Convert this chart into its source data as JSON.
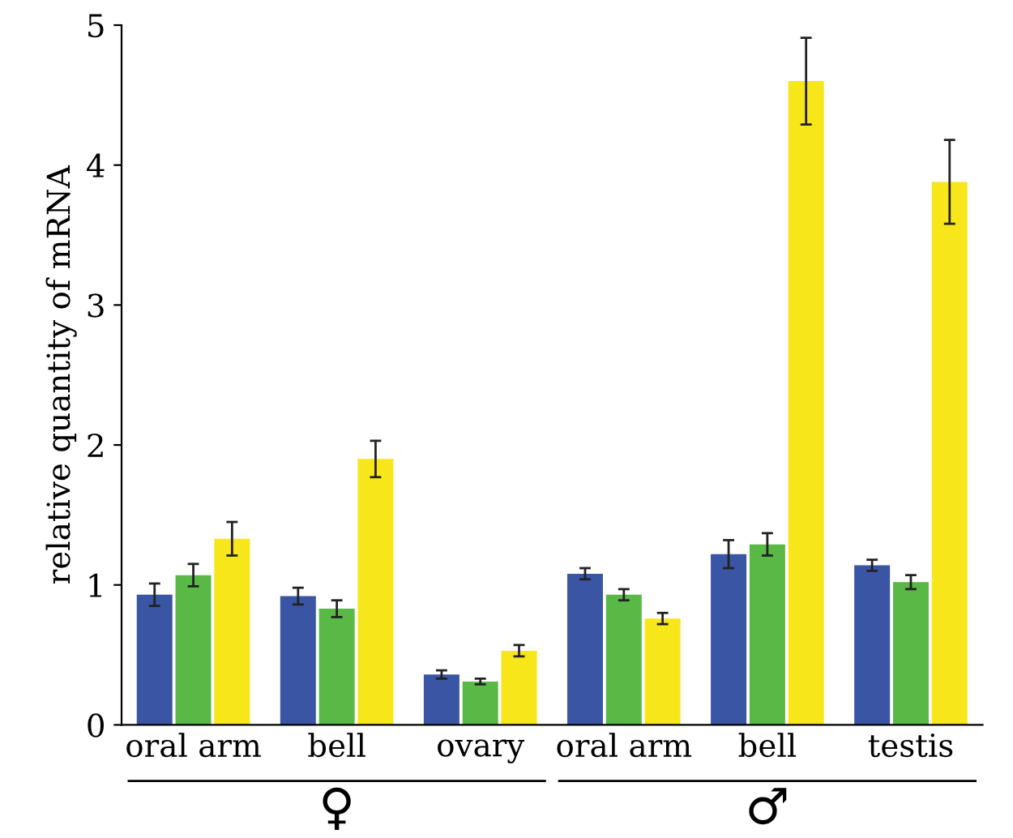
{
  "chart_data": {
    "type": "bar",
    "ylabel": "relative quantity of mRNA",
    "categories": [
      "oral arm",
      "bell",
      "ovary",
      "oral arm",
      "bell",
      "testis"
    ],
    "series": [
      {
        "color": "#3a55a4",
        "values": [
          0.93,
          0.92,
          0.36,
          1.08,
          1.22,
          1.14
        ],
        "errors": [
          0.08,
          0.06,
          0.03,
          0.04,
          0.1,
          0.04
        ]
      },
      {
        "color": "#5ab946",
        "values": [
          1.07,
          0.83,
          0.31,
          0.93,
          1.29,
          1.02
        ],
        "errors": [
          0.08,
          0.06,
          0.02,
          0.04,
          0.08,
          0.05
        ]
      },
      {
        "color": "#f7e61a",
        "values": [
          1.33,
          1.9,
          0.53,
          0.76,
          4.6,
          3.88
        ],
        "errors": [
          0.12,
          0.13,
          0.04,
          0.04,
          0.31,
          0.3
        ]
      }
    ],
    "ylim": [
      0,
      5
    ],
    "yticks": [
      0,
      1,
      2,
      3,
      4,
      5
    ],
    "grid": false,
    "legend": false,
    "annotations": [
      "♀",
      "♂"
    ]
  }
}
